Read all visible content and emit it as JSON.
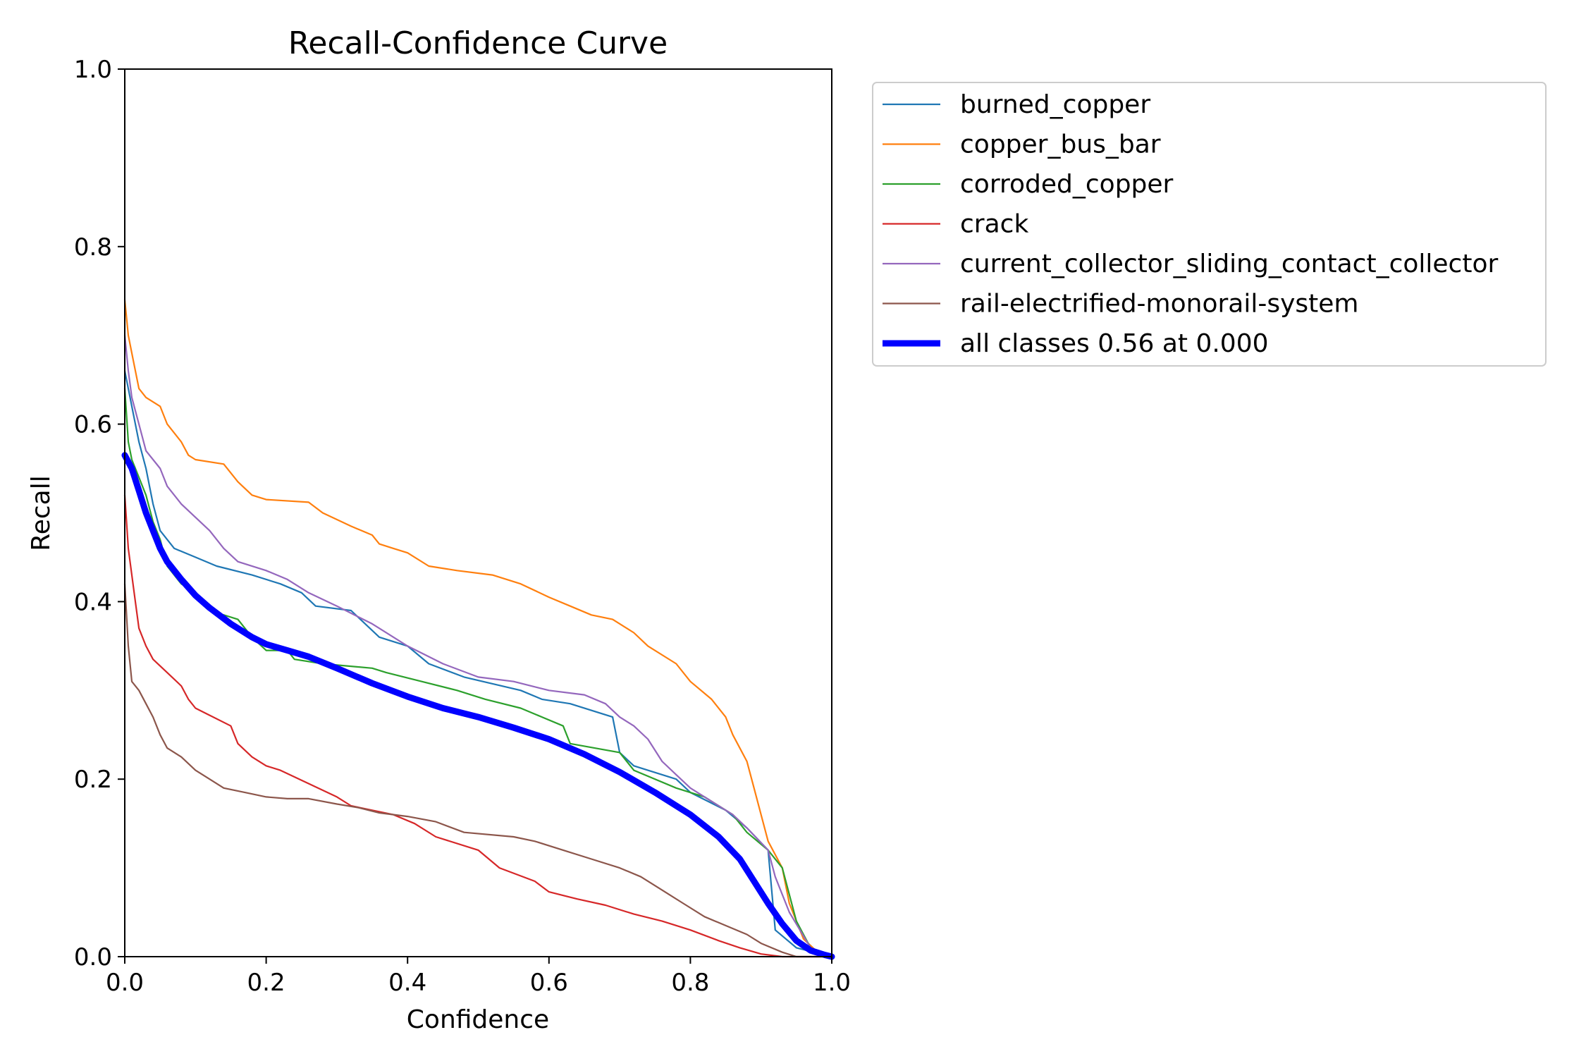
{
  "chart_data": {
    "type": "line",
    "title": "Recall-Confidence Curve",
    "xlabel": "Confidence",
    "ylabel": "Recall",
    "xlim": [
      0,
      1
    ],
    "ylim": [
      0,
      1
    ],
    "x_ticks": [
      "0.0",
      "0.2",
      "0.4",
      "0.6",
      "0.8",
      "1.0"
    ],
    "y_ticks": [
      "0.0",
      "0.2",
      "0.4",
      "0.6",
      "0.8",
      "1.0"
    ],
    "grid": false,
    "legend_position": "outside-top-right",
    "series": [
      {
        "name": "burned_copper",
        "color": "#1f77b4",
        "points": [
          [
            0,
            0.66
          ],
          [
            0.005,
            0.64
          ],
          [
            0.01,
            0.62
          ],
          [
            0.02,
            0.58
          ],
          [
            0.03,
            0.55
          ],
          [
            0.04,
            0.51
          ],
          [
            0.05,
            0.48
          ],
          [
            0.06,
            0.47
          ],
          [
            0.07,
            0.46
          ],
          [
            0.1,
            0.45
          ],
          [
            0.13,
            0.44
          ],
          [
            0.18,
            0.43
          ],
          [
            0.22,
            0.42
          ],
          [
            0.25,
            0.41
          ],
          [
            0.27,
            0.395
          ],
          [
            0.32,
            0.39
          ],
          [
            0.36,
            0.36
          ],
          [
            0.4,
            0.35
          ],
          [
            0.43,
            0.33
          ],
          [
            0.48,
            0.315
          ],
          [
            0.56,
            0.3
          ],
          [
            0.59,
            0.29
          ],
          [
            0.63,
            0.285
          ],
          [
            0.69,
            0.27
          ],
          [
            0.7,
            0.23
          ],
          [
            0.72,
            0.215
          ],
          [
            0.78,
            0.2
          ],
          [
            0.8,
            0.185
          ],
          [
            0.85,
            0.165
          ],
          [
            0.88,
            0.145
          ],
          [
            0.91,
            0.12
          ],
          [
            0.92,
            0.03
          ],
          [
            0.95,
            0.01
          ],
          [
            1.0,
            0
          ]
        ]
      },
      {
        "name": "copper_bus_bar",
        "color": "#ff7f0e",
        "points": [
          [
            0,
            0.74
          ],
          [
            0.005,
            0.7
          ],
          [
            0.01,
            0.68
          ],
          [
            0.02,
            0.64
          ],
          [
            0.03,
            0.63
          ],
          [
            0.05,
            0.62
          ],
          [
            0.06,
            0.6
          ],
          [
            0.08,
            0.58
          ],
          [
            0.09,
            0.565
          ],
          [
            0.1,
            0.56
          ],
          [
            0.14,
            0.555
          ],
          [
            0.16,
            0.535
          ],
          [
            0.18,
            0.52
          ],
          [
            0.2,
            0.515
          ],
          [
            0.26,
            0.512
          ],
          [
            0.28,
            0.5
          ],
          [
            0.32,
            0.485
          ],
          [
            0.35,
            0.475
          ],
          [
            0.36,
            0.465
          ],
          [
            0.38,
            0.46
          ],
          [
            0.4,
            0.455
          ],
          [
            0.43,
            0.44
          ],
          [
            0.47,
            0.435
          ],
          [
            0.52,
            0.43
          ],
          [
            0.56,
            0.42
          ],
          [
            0.6,
            0.405
          ],
          [
            0.63,
            0.395
          ],
          [
            0.66,
            0.385
          ],
          [
            0.69,
            0.38
          ],
          [
            0.72,
            0.365
          ],
          [
            0.74,
            0.35
          ],
          [
            0.78,
            0.33
          ],
          [
            0.8,
            0.31
          ],
          [
            0.83,
            0.29
          ],
          [
            0.85,
            0.27
          ],
          [
            0.86,
            0.25
          ],
          [
            0.88,
            0.22
          ],
          [
            0.89,
            0.19
          ],
          [
            0.9,
            0.16
          ],
          [
            0.91,
            0.13
          ],
          [
            0.93,
            0.1
          ],
          [
            0.94,
            0.06
          ],
          [
            0.96,
            0.02
          ],
          [
            0.98,
            0.005
          ],
          [
            1.0,
            0
          ]
        ]
      },
      {
        "name": "corroded_copper",
        "color": "#2ca02c",
        "points": [
          [
            0,
            0.64
          ],
          [
            0.005,
            0.58
          ],
          [
            0.01,
            0.56
          ],
          [
            0.02,
            0.54
          ],
          [
            0.03,
            0.52
          ],
          [
            0.04,
            0.49
          ],
          [
            0.05,
            0.47
          ],
          [
            0.06,
            0.44
          ],
          [
            0.08,
            0.42
          ],
          [
            0.1,
            0.41
          ],
          [
            0.12,
            0.39
          ],
          [
            0.16,
            0.38
          ],
          [
            0.18,
            0.36
          ],
          [
            0.2,
            0.345
          ],
          [
            0.23,
            0.345
          ],
          [
            0.24,
            0.335
          ],
          [
            0.28,
            0.33
          ],
          [
            0.35,
            0.325
          ],
          [
            0.37,
            0.32
          ],
          [
            0.42,
            0.31
          ],
          [
            0.47,
            0.3
          ],
          [
            0.51,
            0.29
          ],
          [
            0.56,
            0.28
          ],
          [
            0.62,
            0.26
          ],
          [
            0.63,
            0.24
          ],
          [
            0.7,
            0.23
          ],
          [
            0.72,
            0.21
          ],
          [
            0.78,
            0.19
          ],
          [
            0.82,
            0.18
          ],
          [
            0.86,
            0.16
          ],
          [
            0.88,
            0.14
          ],
          [
            0.91,
            0.12
          ],
          [
            0.93,
            0.1
          ],
          [
            0.94,
            0.07
          ],
          [
            0.95,
            0.04
          ],
          [
            0.97,
            0.01
          ],
          [
            1.0,
            0
          ]
        ]
      },
      {
        "name": "crack",
        "color": "#d62728",
        "points": [
          [
            0,
            0.52
          ],
          [
            0.005,
            0.46
          ],
          [
            0.01,
            0.43
          ],
          [
            0.015,
            0.4
          ],
          [
            0.02,
            0.37
          ],
          [
            0.03,
            0.35
          ],
          [
            0.04,
            0.335
          ],
          [
            0.06,
            0.32
          ],
          [
            0.08,
            0.305
          ],
          [
            0.09,
            0.29
          ],
          [
            0.1,
            0.28
          ],
          [
            0.12,
            0.272
          ],
          [
            0.15,
            0.26
          ],
          [
            0.16,
            0.24
          ],
          [
            0.18,
            0.225
          ],
          [
            0.2,
            0.215
          ],
          [
            0.22,
            0.21
          ],
          [
            0.26,
            0.195
          ],
          [
            0.3,
            0.18
          ],
          [
            0.32,
            0.17
          ],
          [
            0.35,
            0.165
          ],
          [
            0.38,
            0.16
          ],
          [
            0.41,
            0.15
          ],
          [
            0.44,
            0.135
          ],
          [
            0.5,
            0.12
          ],
          [
            0.53,
            0.1
          ],
          [
            0.58,
            0.085
          ],
          [
            0.6,
            0.073
          ],
          [
            0.64,
            0.065
          ],
          [
            0.68,
            0.058
          ],
          [
            0.72,
            0.048
          ],
          [
            0.76,
            0.04
          ],
          [
            0.8,
            0.03
          ],
          [
            0.84,
            0.018
          ],
          [
            0.87,
            0.01
          ],
          [
            0.9,
            0.003
          ],
          [
            0.93,
            0
          ],
          [
            1.0,
            0
          ]
        ]
      },
      {
        "name": "current_collector_sliding_contact_collector",
        "color": "#9467bd",
        "points": [
          [
            0,
            0.7
          ],
          [
            0.005,
            0.66
          ],
          [
            0.01,
            0.63
          ],
          [
            0.02,
            0.6
          ],
          [
            0.03,
            0.57
          ],
          [
            0.05,
            0.55
          ],
          [
            0.06,
            0.53
          ],
          [
            0.08,
            0.51
          ],
          [
            0.1,
            0.495
          ],
          [
            0.12,
            0.48
          ],
          [
            0.14,
            0.46
          ],
          [
            0.16,
            0.445
          ],
          [
            0.2,
            0.435
          ],
          [
            0.23,
            0.425
          ],
          [
            0.26,
            0.41
          ],
          [
            0.3,
            0.395
          ],
          [
            0.35,
            0.375
          ],
          [
            0.4,
            0.35
          ],
          [
            0.45,
            0.33
          ],
          [
            0.5,
            0.315
          ],
          [
            0.55,
            0.31
          ],
          [
            0.6,
            0.3
          ],
          [
            0.65,
            0.295
          ],
          [
            0.68,
            0.285
          ],
          [
            0.7,
            0.27
          ],
          [
            0.72,
            0.26
          ],
          [
            0.74,
            0.245
          ],
          [
            0.76,
            0.22
          ],
          [
            0.78,
            0.205
          ],
          [
            0.8,
            0.19
          ],
          [
            0.83,
            0.175
          ],
          [
            0.86,
            0.16
          ],
          [
            0.88,
            0.145
          ],
          [
            0.91,
            0.12
          ],
          [
            0.92,
            0.09
          ],
          [
            0.94,
            0.05
          ],
          [
            0.97,
            0.01
          ],
          [
            1.0,
            0
          ]
        ]
      },
      {
        "name": "rail-electrified-monorail-system",
        "color": "#8c564b",
        "points": [
          [
            0,
            0.42
          ],
          [
            0.005,
            0.35
          ],
          [
            0.01,
            0.31
          ],
          [
            0.02,
            0.3
          ],
          [
            0.03,
            0.285
          ],
          [
            0.04,
            0.27
          ],
          [
            0.05,
            0.25
          ],
          [
            0.06,
            0.235
          ],
          [
            0.08,
            0.225
          ],
          [
            0.1,
            0.21
          ],
          [
            0.12,
            0.2
          ],
          [
            0.14,
            0.19
          ],
          [
            0.17,
            0.185
          ],
          [
            0.2,
            0.18
          ],
          [
            0.23,
            0.178
          ],
          [
            0.26,
            0.178
          ],
          [
            0.3,
            0.172
          ],
          [
            0.33,
            0.168
          ],
          [
            0.36,
            0.162
          ],
          [
            0.4,
            0.158
          ],
          [
            0.44,
            0.152
          ],
          [
            0.48,
            0.14
          ],
          [
            0.55,
            0.135
          ],
          [
            0.58,
            0.13
          ],
          [
            0.62,
            0.12
          ],
          [
            0.66,
            0.11
          ],
          [
            0.7,
            0.1
          ],
          [
            0.73,
            0.09
          ],
          [
            0.76,
            0.075
          ],
          [
            0.79,
            0.06
          ],
          [
            0.82,
            0.045
          ],
          [
            0.85,
            0.035
          ],
          [
            0.88,
            0.025
          ],
          [
            0.9,
            0.015
          ],
          [
            0.93,
            0.005
          ],
          [
            0.95,
            0
          ],
          [
            1.0,
            0
          ]
        ]
      },
      {
        "name": "all classes 0.56 at 0.000",
        "color": "#0000ff",
        "thick": true,
        "points": [
          [
            0,
            0.565
          ],
          [
            0.01,
            0.55
          ],
          [
            0.02,
            0.525
          ],
          [
            0.03,
            0.5
          ],
          [
            0.04,
            0.48
          ],
          [
            0.05,
            0.46
          ],
          [
            0.06,
            0.445
          ],
          [
            0.08,
            0.425
          ],
          [
            0.1,
            0.407
          ],
          [
            0.12,
            0.393
          ],
          [
            0.15,
            0.375
          ],
          [
            0.18,
            0.36
          ],
          [
            0.2,
            0.352
          ],
          [
            0.23,
            0.345
          ],
          [
            0.26,
            0.338
          ],
          [
            0.3,
            0.325
          ],
          [
            0.35,
            0.308
          ],
          [
            0.4,
            0.293
          ],
          [
            0.45,
            0.28
          ],
          [
            0.5,
            0.27
          ],
          [
            0.55,
            0.258
          ],
          [
            0.6,
            0.245
          ],
          [
            0.65,
            0.228
          ],
          [
            0.7,
            0.208
          ],
          [
            0.75,
            0.185
          ],
          [
            0.8,
            0.16
          ],
          [
            0.84,
            0.135
          ],
          [
            0.87,
            0.11
          ],
          [
            0.89,
            0.085
          ],
          [
            0.91,
            0.06
          ],
          [
            0.93,
            0.037
          ],
          [
            0.95,
            0.018
          ],
          [
            0.97,
            0.007
          ],
          [
            0.99,
            0.002
          ],
          [
            1.0,
            0
          ]
        ]
      }
    ]
  }
}
